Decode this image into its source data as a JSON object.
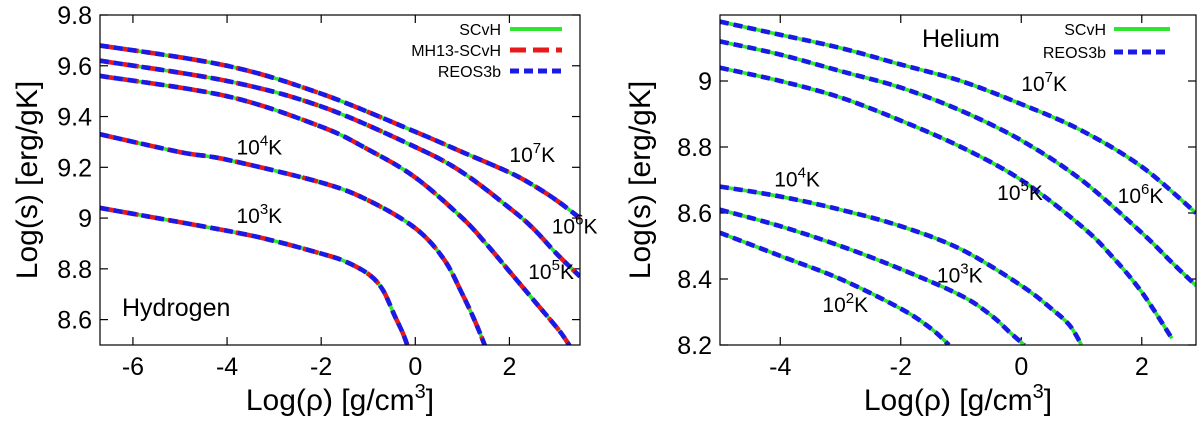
{
  "chart_data": [
    {
      "type": "line",
      "panel_label": "Hydrogen",
      "xlabel": "Log(ρ) [g/cm3]",
      "ylabel": "Log(s) [erg/gK]",
      "xlim": [
        -6.7,
        3.5
      ],
      "ylim": [
        8.5,
        9.8
      ],
      "xticks": [
        -6,
        -4,
        -2,
        0,
        2
      ],
      "xtick_labels": [
        "-6",
        "-4",
        "-2",
        "0",
        "2"
      ],
      "yticks": [
        8.6,
        8.8,
        9.0,
        9.2,
        9.4,
        9.6,
        9.8
      ],
      "ytick_labels": [
        "8.6",
        "8.8",
        "9",
        "9.2",
        "9.4",
        "9.6",
        "9.8"
      ],
      "legend": [
        {
          "label": "SCvH",
          "color": "#2ee62e",
          "dash": "solid"
        },
        {
          "label": "MH13-SCvH",
          "color": "#e61a1a",
          "dash": "long-dash"
        },
        {
          "label": "REOS3b",
          "color": "#1a1ae6",
          "dash": "short-dash"
        }
      ],
      "series": [
        {
          "name": "10^7K",
          "x": [
            -6.7,
            -4,
            -2,
            0,
            1,
            2,
            2.5,
            3.0,
            3.5
          ],
          "y": [
            9.68,
            9.6,
            9.49,
            9.34,
            9.26,
            9.18,
            9.13,
            9.07,
            9.0
          ]
        },
        {
          "name": "10^6K",
          "x": [
            -6.7,
            -4,
            -2,
            0,
            1,
            2,
            2.5,
            3.0,
            3.5
          ],
          "y": [
            9.62,
            9.54,
            9.44,
            9.28,
            9.18,
            9.04,
            8.96,
            8.86,
            8.77
          ]
        },
        {
          "name": "10^5K",
          "x": [
            -6.7,
            -4,
            -2,
            -1,
            0,
            1,
            1.5,
            2.0,
            2.5,
            3.0,
            3.2,
            3.4
          ],
          "y": [
            9.56,
            9.48,
            9.36,
            9.27,
            9.16,
            9.0,
            8.9,
            8.79,
            8.68,
            8.57,
            8.52,
            8.46
          ]
        },
        {
          "name": "10^4K",
          "x": [
            -6.7,
            -5,
            -4,
            -2,
            -1,
            0,
            0.6,
            1.0,
            1.3,
            1.6
          ],
          "y": [
            9.33,
            9.26,
            9.23,
            9.14,
            9.07,
            8.96,
            8.84,
            8.7,
            8.58,
            8.44
          ]
        },
        {
          "name": "10^3K",
          "x": [
            -6.7,
            -4,
            -3,
            -2,
            -1.5,
            -1,
            -0.7,
            -0.45,
            -0.25,
            -0.1
          ],
          "y": [
            9.04,
            8.95,
            8.91,
            8.86,
            8.83,
            8.78,
            8.72,
            8.62,
            8.54,
            8.46
          ]
        }
      ],
      "curve_labels": [
        {
          "base": "10",
          "exp": "7",
          "unit": "K",
          "x": 2.0,
          "y": 9.22
        },
        {
          "base": "10",
          "exp": "6",
          "unit": "K",
          "x": 2.9,
          "y": 8.94
        },
        {
          "base": "10",
          "exp": "5",
          "unit": "K",
          "x": 2.4,
          "y": 8.76
        },
        {
          "base": "10",
          "exp": "4",
          "unit": "K",
          "x": -3.8,
          "y": 9.25
        },
        {
          "base": "10",
          "exp": "3",
          "unit": "K",
          "x": -3.8,
          "y": 8.98
        }
      ]
    },
    {
      "type": "line",
      "panel_label": "Helium",
      "xlabel": "Log(ρ) [g/cm3]",
      "ylabel": "Log(s) [erg/gK]",
      "xlim": [
        -5.0,
        2.9
      ],
      "ylim": [
        8.2,
        9.2
      ],
      "xticks": [
        -4,
        -2,
        0,
        2
      ],
      "xtick_labels": [
        "-4",
        "-2",
        "0",
        "2"
      ],
      "yticks": [
        8.2,
        8.4,
        8.6,
        8.8,
        9.0
      ],
      "ytick_labels": [
        "8.2",
        "8.4",
        "8.6",
        "8.8",
        "9"
      ],
      "legend": [
        {
          "label": "SCvH",
          "color": "#2ee62e",
          "dash": "solid"
        },
        {
          "label": "REOS3b",
          "color": "#1a1ae6",
          "dash": "short-dash"
        }
      ],
      "series": [
        {
          "name": "10^7K",
          "x": [
            -5,
            -4,
            -3,
            -2,
            -1,
            0,
            1,
            2,
            2.9
          ],
          "y": [
            9.18,
            9.14,
            9.1,
            9.05,
            9.0,
            8.93,
            8.85,
            8.74,
            8.6
          ]
        },
        {
          "name": "10^6K",
          "x": [
            -5,
            -4,
            -3,
            -2,
            -1,
            0,
            1,
            2,
            2.5,
            2.9
          ],
          "y": [
            9.12,
            9.08,
            9.03,
            8.98,
            8.91,
            8.82,
            8.7,
            8.54,
            8.45,
            8.38
          ]
        },
        {
          "name": "10^5K",
          "x": [
            -5,
            -4,
            -3,
            -2,
            -1,
            0,
            1,
            1.5,
            2.0,
            2.5
          ],
          "y": [
            9.04,
            9.0,
            8.95,
            8.88,
            8.8,
            8.7,
            8.56,
            8.47,
            8.36,
            8.22
          ]
        },
        {
          "name": "10^4K",
          "x": [
            -5,
            -4,
            -3,
            -2,
            -1,
            0,
            0.5,
            0.8,
            1.0
          ],
          "y": [
            8.68,
            8.65,
            8.61,
            8.56,
            8.49,
            8.38,
            8.31,
            8.26,
            8.2
          ]
        },
        {
          "name": "10^3K",
          "x": [
            -5,
            -4,
            -3,
            -2,
            -1,
            -0.5,
            -0.2,
            0.05
          ],
          "y": [
            8.61,
            8.56,
            8.5,
            8.43,
            8.35,
            8.29,
            8.24,
            8.2
          ]
        },
        {
          "name": "10^2K",
          "x": [
            -5,
            -4,
            -3,
            -2,
            -1.5,
            -1.2
          ],
          "y": [
            8.54,
            8.47,
            8.4,
            8.31,
            8.25,
            8.2
          ]
        }
      ],
      "curve_labels": [
        {
          "base": "10",
          "exp": "7",
          "unit": "K",
          "x": 0.0,
          "y": 8.97
        },
        {
          "base": "10",
          "exp": "6",
          "unit": "K",
          "x": 1.6,
          "y": 8.63
        },
        {
          "base": "10",
          "exp": "5",
          "unit": "K",
          "x": -0.4,
          "y": 8.64
        },
        {
          "base": "10",
          "exp": "4",
          "unit": "K",
          "x": -4.1,
          "y": 8.68
        },
        {
          "base": "10",
          "exp": "3",
          "unit": "K",
          "x": -1.4,
          "y": 8.39
        },
        {
          "base": "10",
          "exp": "2",
          "unit": "K",
          "x": -3.3,
          "y": 8.3
        }
      ]
    }
  ]
}
